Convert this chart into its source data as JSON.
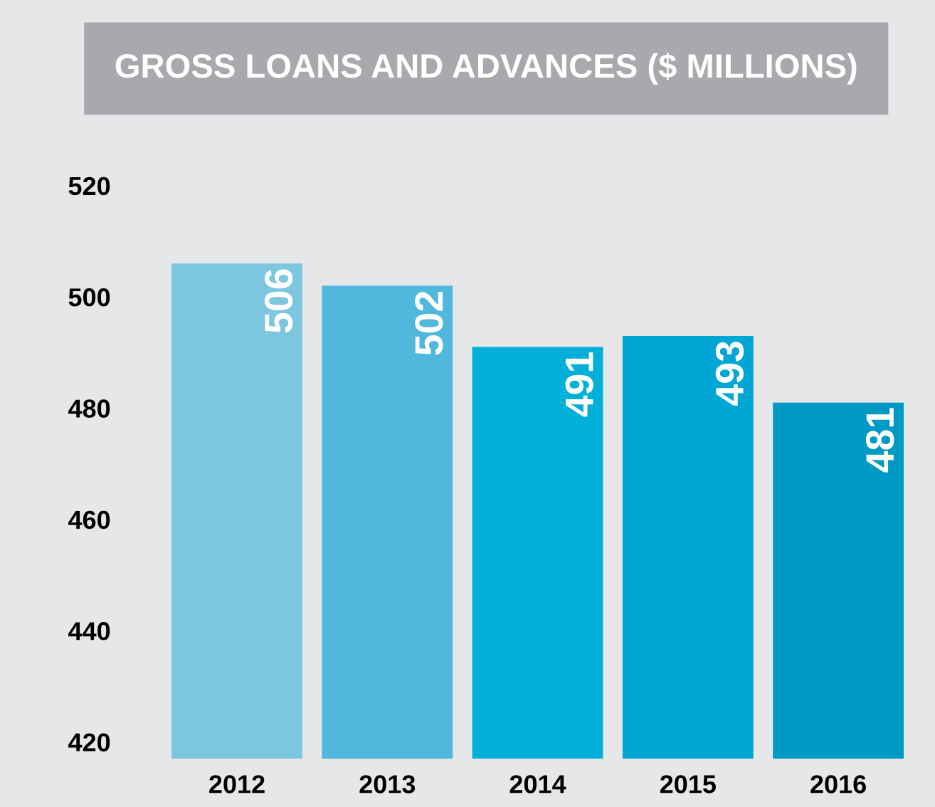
{
  "chart_data": {
    "type": "bar",
    "title": "GROSS LOANS AND ADVANCES ($ MILLIONS)",
    "categories": [
      "2012",
      "2013",
      "2014",
      "2015",
      "2016"
    ],
    "values": [
      506,
      502,
      491,
      493,
      481
    ],
    "colors": [
      "#7dc6e0",
      "#4fb8dc",
      "#00b0d8",
      "#00a6d4",
      "#0099c4"
    ],
    "ylim": [
      417,
      520
    ],
    "yticks": [
      420,
      440,
      460,
      480,
      500,
      520
    ],
    "data_labels": true,
    "grid": false
  }
}
